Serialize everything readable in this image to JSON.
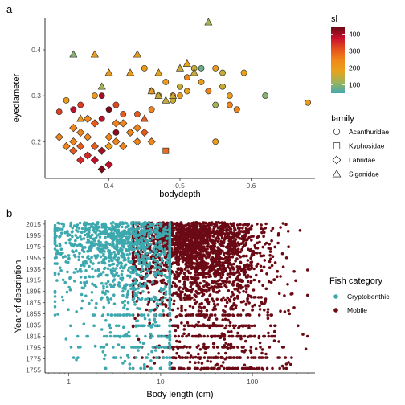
{
  "chart_data": [
    {
      "panel": "a",
      "type": "scatter",
      "xlabel": "bodydepth",
      "ylabel": "eyediameter",
      "xlim": [
        0.31,
        0.69
      ],
      "ylim": [
        0.12,
        0.47
      ],
      "xticks": [
        0.4,
        0.5,
        0.6
      ],
      "yticks": [
        0.2,
        0.3,
        0.4
      ],
      "xtick_labels": [
        "0.4",
        "0.5",
        "0.6"
      ],
      "ytick_labels": [
        "0.2",
        "0.3",
        "0.4"
      ],
      "color_legend": {
        "title": "sl",
        "range": [
          50,
          440
        ],
        "ticks": [
          100,
          200,
          300,
          400
        ],
        "tick_labels": [
          "100",
          "200",
          "300",
          "400"
        ],
        "stops": [
          "#41A8B0",
          "#9DB35A",
          "#E8A31D",
          "#F0881A",
          "#E4521C",
          "#C8102E",
          "#6E0A14"
        ]
      },
      "shape_legend": {
        "title": "family",
        "items": [
          {
            "label": "Acanthuridae",
            "shape": "circle"
          },
          {
            "label": "Kyphosidae",
            "shape": "square"
          },
          {
            "label": "Labridae",
            "shape": "diamond"
          },
          {
            "label": "Siganidae",
            "shape": "triangle"
          }
        ]
      },
      "series": [
        {
          "family": "Acanthuridae",
          "points": [
            [
              0.33,
              0.265,
              330
            ],
            [
              0.34,
              0.29,
              200
            ],
            [
              0.35,
              0.27,
              380
            ],
            [
              0.36,
              0.28,
              330
            ],
            [
              0.37,
              0.25,
              300
            ],
            [
              0.38,
              0.3,
              200
            ],
            [
              0.39,
              0.25,
              380
            ],
            [
              0.39,
              0.3,
              400
            ],
            [
              0.4,
              0.27,
              430
            ],
            [
              0.41,
              0.28,
              320
            ],
            [
              0.41,
              0.22,
              420
            ],
            [
              0.42,
              0.26,
              300
            ],
            [
              0.43,
              0.22,
              250
            ],
            [
              0.44,
              0.26,
              300
            ],
            [
              0.45,
              0.36,
              200
            ],
            [
              0.46,
              0.27,
              250
            ],
            [
              0.46,
              0.31,
              200
            ],
            [
              0.47,
              0.3,
              150
            ],
            [
              0.48,
              0.33,
              200
            ],
            [
              0.49,
              0.3,
              250
            ],
            [
              0.5,
              0.3,
              200
            ],
            [
              0.5,
              0.32,
              150
            ],
            [
              0.51,
              0.34,
              250
            ],
            [
              0.52,
              0.36,
              150
            ],
            [
              0.53,
              0.36,
              80
            ],
            [
              0.53,
              0.33,
              200
            ],
            [
              0.54,
              0.31,
              250
            ],
            [
              0.55,
              0.28,
              120
            ],
            [
              0.55,
              0.36,
              200
            ],
            [
              0.55,
              0.2,
              200
            ],
            [
              0.56,
              0.35,
              150
            ],
            [
              0.56,
              0.32,
              150
            ],
            [
              0.57,
              0.3,
              200
            ],
            [
              0.57,
              0.28,
              250
            ],
            [
              0.58,
              0.27,
              250
            ],
            [
              0.59,
              0.35,
              180
            ],
            [
              0.62,
              0.3,
              100
            ],
            [
              0.68,
              0.285,
              200
            ],
            [
              0.49,
              0.29,
              150
            ],
            [
              0.51,
              0.31,
              180
            ]
          ]
        },
        {
          "family": "Kyphosidae",
          "points": [
            [
              0.48,
              0.18,
              280
            ]
          ]
        },
        {
          "family": "Labridae",
          "points": [
            [
              0.33,
              0.21,
              250
            ],
            [
              0.34,
              0.19,
              250
            ],
            [
              0.35,
              0.23,
              250
            ],
            [
              0.35,
              0.18,
              300
            ],
            [
              0.36,
              0.22,
              250
            ],
            [
              0.36,
              0.19,
              300
            ],
            [
              0.37,
              0.17,
              350
            ],
            [
              0.37,
              0.21,
              250
            ],
            [
              0.38,
              0.16,
              380
            ],
            [
              0.38,
              0.19,
              300
            ],
            [
              0.39,
              0.14,
              430
            ],
            [
              0.39,
              0.18,
              400
            ],
            [
              0.4,
              0.15,
              380
            ],
            [
              0.4,
              0.21,
              250
            ],
            [
              0.41,
              0.2,
              250
            ],
            [
              0.41,
              0.24,
              250
            ],
            [
              0.42,
              0.19,
              250
            ],
            [
              0.42,
              0.24,
              250
            ],
            [
              0.43,
              0.22,
              250
            ],
            [
              0.44,
              0.2,
              250
            ],
            [
              0.44,
              0.23,
              250
            ],
            [
              0.45,
              0.22,
              300
            ],
            [
              0.46,
              0.2,
              250
            ],
            [
              0.37,
              0.25,
              250
            ],
            [
              0.38,
              0.24,
              300
            ],
            [
              0.36,
              0.16,
              350
            ],
            [
              0.4,
              0.19,
              200
            ],
            [
              0.35,
              0.2,
              250
            ]
          ]
        },
        {
          "family": "Siganidae",
          "points": [
            [
              0.35,
              0.39,
              100
            ],
            [
              0.38,
              0.39,
              200
            ],
            [
              0.39,
              0.32,
              120
            ],
            [
              0.4,
              0.35,
              200
            ],
            [
              0.43,
              0.35,
              200
            ],
            [
              0.44,
              0.39,
              200
            ],
            [
              0.46,
              0.31,
              200
            ],
            [
              0.47,
              0.3,
              150
            ],
            [
              0.48,
              0.29,
              150
            ],
            [
              0.49,
              0.3,
              150
            ],
            [
              0.5,
              0.36,
              150
            ],
            [
              0.51,
              0.37,
              180
            ],
            [
              0.52,
              0.35,
              150
            ],
            [
              0.54,
              0.46,
              120
            ],
            [
              0.45,
              0.25,
              300
            ],
            [
              0.36,
              0.25,
              200
            ],
            [
              0.47,
              0.35,
              180
            ]
          ]
        }
      ]
    },
    {
      "panel": "b",
      "type": "scatter",
      "xlabel": "Body length (cm)",
      "ylabel": "Year of description",
      "x_scale": "log",
      "xlim": [
        0.55,
        480
      ],
      "ylim": [
        1750,
        2022
      ],
      "xticks": [
        1,
        10,
        100
      ],
      "xtick_labels": [
        "1",
        "10",
        "100"
      ],
      "yticks": [
        1755,
        1775,
        1795,
        1815,
        1835,
        1855,
        1875,
        1895,
        1915,
        1935,
        1955,
        1975,
        1995,
        2015
      ],
      "ytick_labels": [
        "1755",
        "1775",
        "1795",
        "1815",
        "1835",
        "1855",
        "1875",
        "1895",
        "1915",
        "1935",
        "1955",
        "1975",
        "1995",
        "2015"
      ],
      "legend": {
        "title": "Fish category",
        "items": [
          {
            "label": "Cryptobenthic",
            "color": "#3DA8AE"
          },
          {
            "label": "Mobile",
            "color": "#6B0A14"
          }
        ]
      },
      "series": [
        {
          "name": "Mobile",
          "color": "#6B0A14",
          "note_distribution": {
            "x_log_range": [
              0.7,
              2.6
            ],
            "x_log_peak": 1.3,
            "y_range": [
              1755,
              2018
            ],
            "count": 2600
          }
        },
        {
          "name": "Cryptobenthic",
          "color": "#3DA8AE",
          "note_distribution": {
            "x_log_range": [
              -0.15,
              1.1
            ],
            "x_log_peak": 0.5,
            "y_range": [
              1758,
              2018
            ],
            "count": 1300
          }
        }
      ]
    }
  ]
}
